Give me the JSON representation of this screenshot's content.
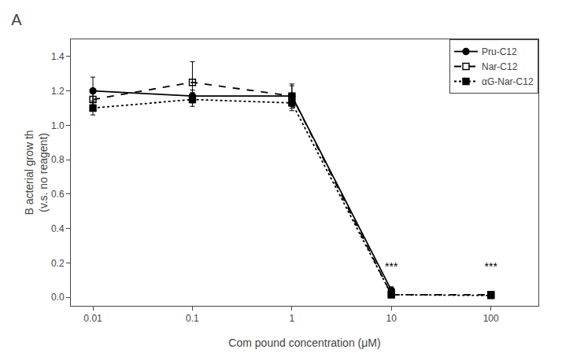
{
  "chart_data": {
    "type": "line",
    "title": "A",
    "xlabel": "Com pound concentration (μM)",
    "ylabel": "B acterial grow th\n(v.s. no reagent)",
    "log": "x",
    "xlim": [
      0.006,
      300
    ],
    "ylim": [
      -0.05,
      1.5
    ],
    "xticks": [
      0.01,
      0.1,
      1,
      10,
      100
    ],
    "yticks": [
      {
        "value": 0.0,
        "label": "0.0"
      },
      0.2,
      0.4,
      0.6,
      0.8,
      {
        "value": 1.0,
        "label": "1.0"
      },
      1.2,
      1.4
    ],
    "grid": false,
    "legend": "upper right",
    "series": [
      {
        "name": "Pru-C12",
        "color": "#000000",
        "marker": "circle",
        "line_style": "solid",
        "x": [
          0.01,
          0.1,
          1,
          10
        ],
        "values": [
          1.2,
          1.17,
          1.17,
          0.04
        ],
        "errors": [
          0.08,
          0.035,
          0.06,
          0.02
        ]
      },
      {
        "name": "Nar-C12",
        "color": "#000000",
        "marker": "square-open",
        "line_style": "dash",
        "x": [
          0.01,
          0.1,
          1,
          10,
          100
        ],
        "values": [
          1.15,
          1.25,
          1.17,
          0.015,
          0.015
        ],
        "errors": [
          0.055,
          0.12,
          0.07,
          0.01,
          0.01
        ]
      },
      {
        "name": "αG-Nar-C12",
        "color": "#000000",
        "marker": "square",
        "line_style": "dot",
        "x": [
          0.01,
          0.1,
          1,
          10,
          100
        ],
        "values": [
          1.1,
          1.15,
          1.13,
          0.015,
          0.01
        ],
        "errors": [
          0.04,
          0.04,
          0.045,
          0.008,
          0.005
        ]
      }
    ],
    "annotations": [
      {
        "text": "***",
        "x": 10,
        "y": 0.14
      },
      {
        "text": "***",
        "x": 100,
        "y": 0.14
      }
    ]
  }
}
